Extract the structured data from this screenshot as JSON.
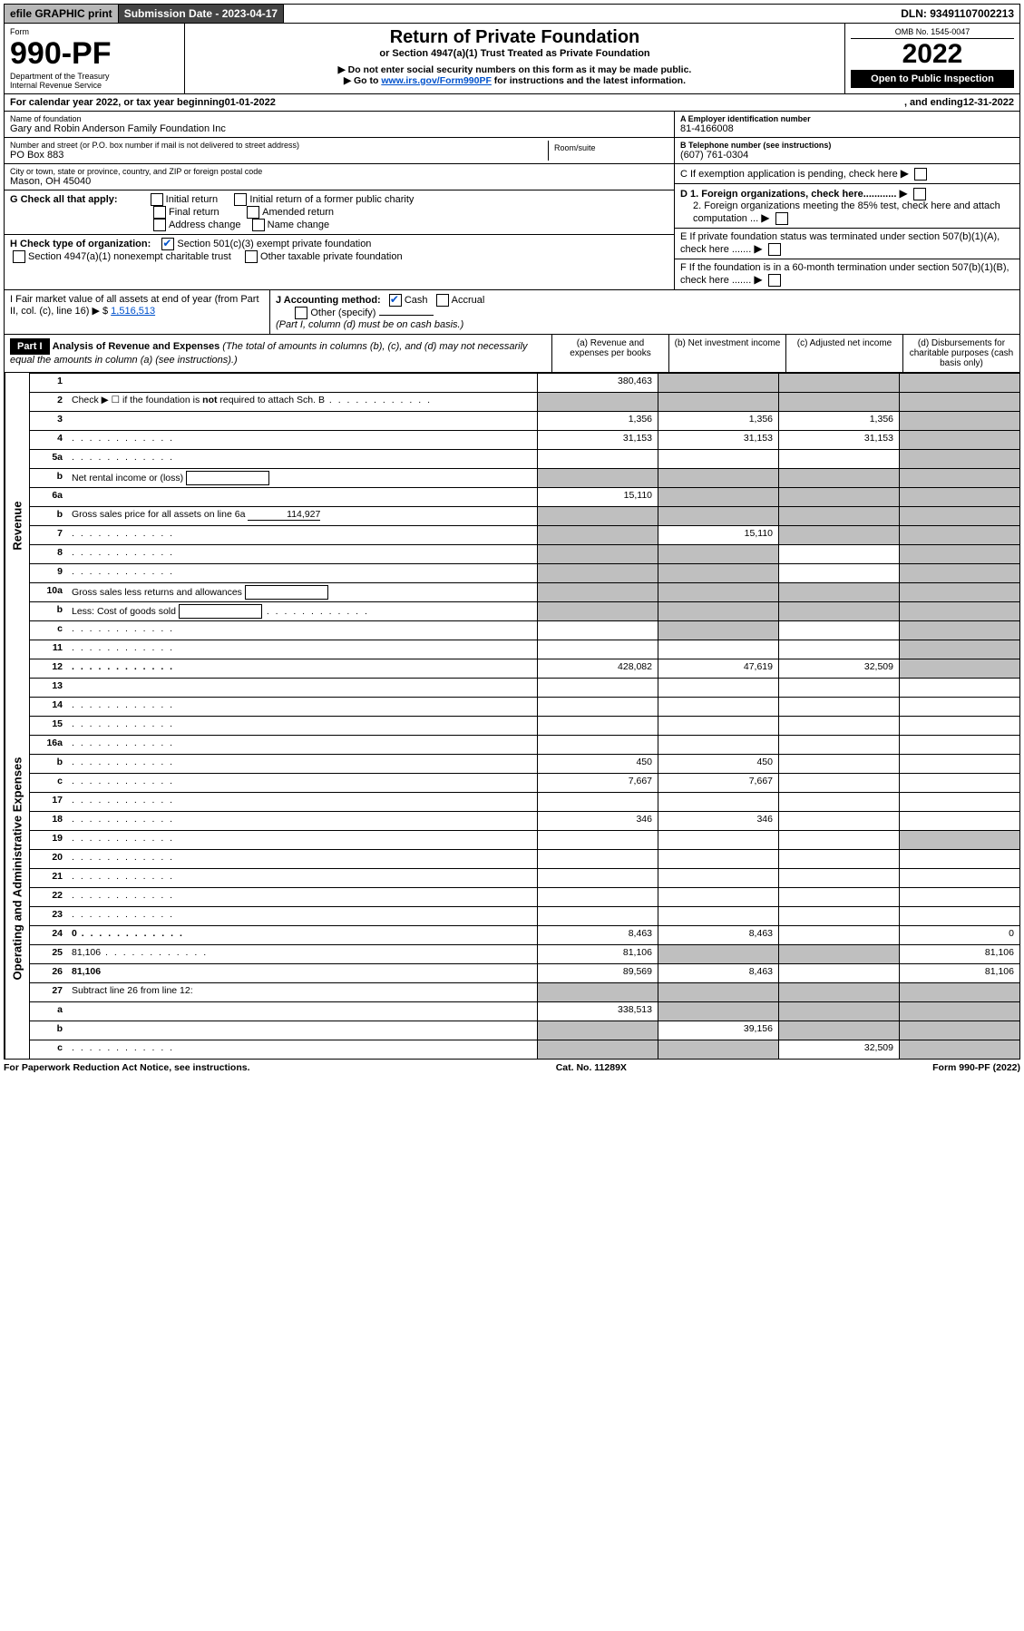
{
  "topbar": {
    "efile": "efile GRAPHIC print",
    "sub_label": "Submission Date - 2023-04-17",
    "dln": "DLN: 93491107002213"
  },
  "header": {
    "form_word": "Form",
    "form_no": "990-PF",
    "dept": "Department of the Treasury",
    "irs": "Internal Revenue Service",
    "title": "Return of Private Foundation",
    "subtitle": "or Section 4947(a)(1) Trust Treated as Private Foundation",
    "note1": "▶ Do not enter social security numbers on this form as it may be made public.",
    "note2_pre": "▶ Go to ",
    "note2_link": "www.irs.gov/Form990PF",
    "note2_post": " for instructions and the latest information.",
    "omb": "OMB No. 1545-0047",
    "year": "2022",
    "inspect": "Open to Public Inspection"
  },
  "calendar": {
    "text_pre": "For calendar year 2022, or tax year beginning ",
    "begin": "01-01-2022",
    "text_mid": ", and ending ",
    "end": "12-31-2022"
  },
  "entity": {
    "name_label": "Name of foundation",
    "name": "Gary and Robin Anderson Family Foundation Inc",
    "addr_label": "Number and street (or P.O. box number if mail is not delivered to street address)",
    "addr": "PO Box 883",
    "room_label": "Room/suite",
    "city_label": "City or town, state or province, country, and ZIP or foreign postal code",
    "city": "Mason, OH  45040",
    "a_label": "A Employer identification number",
    "ein": "81-4166008",
    "b_label": "B Telephone number (see instructions)",
    "phone": "(607) 761-0304",
    "c_label": "C If exemption application is pending, check here",
    "d1": "D 1. Foreign organizations, check here............",
    "d2": "2. Foreign organizations meeting the 85% test, check here and attach computation ...",
    "e": "E  If private foundation status was terminated under section 507(b)(1)(A), check here .......",
    "f": "F  If the foundation is in a 60-month termination under section 507(b)(1)(B), check here ......."
  },
  "g": {
    "label": "G Check all that apply:",
    "opts": [
      "Initial return",
      "Final return",
      "Address change",
      "Initial return of a former public charity",
      "Amended return",
      "Name change"
    ]
  },
  "h": {
    "label": "H Check type of organization:",
    "opt1": "Section 501(c)(3) exempt private foundation",
    "opt2": "Section 4947(a)(1) nonexempt charitable trust",
    "opt3": "Other taxable private foundation"
  },
  "i": {
    "label_pre": "I Fair market value of all assets at end of year (from Part II, col. (c), line 16) ▶ $",
    "value": "1,516,513"
  },
  "j": {
    "label": "J Accounting method:",
    "cash": "Cash",
    "accrual": "Accrual",
    "other": "Other (specify)",
    "note": "(Part I, column (d) must be on cash basis.)"
  },
  "part1": {
    "badge": "Part I",
    "title": "Analysis of Revenue and Expenses",
    "title_note": " (The total of amounts in columns (b), (c), and (d) may not necessarily equal the amounts in column (a) (see instructions).)",
    "col_a": "(a)  Revenue and expenses per books",
    "col_b": "(b)  Net investment income",
    "col_c": "(c)  Adjusted net income",
    "col_d": "(d)  Disbursements for charitable purposes (cash basis only)"
  },
  "side_labels": {
    "rev": "Revenue",
    "exp": "Operating and Administrative Expenses"
  },
  "rows": [
    {
      "n": "1",
      "d": "",
      "a": "380,463",
      "b": "",
      "c": "",
      "gb": true,
      "gc": true,
      "gd": true
    },
    {
      "n": "2",
      "d": "Check ▶ ☐ if the foundation is <b>not</b> required to attach Sch. B",
      "dots": true,
      "noval": true
    },
    {
      "n": "3",
      "d": "",
      "a": "1,356",
      "b": "1,356",
      "c": "1,356",
      "gd": true
    },
    {
      "n": "4",
      "d": "",
      "dots": true,
      "a": "31,153",
      "b": "31,153",
      "c": "31,153",
      "gd": true
    },
    {
      "n": "5a",
      "d": "",
      "dots": true,
      "a": "",
      "b": "",
      "c": "",
      "gd": true
    },
    {
      "n": "b",
      "d": "Net rental income or (loss)",
      "box": true,
      "noval": true
    },
    {
      "n": "6a",
      "d": "",
      "a": "15,110",
      "b": "",
      "c": "",
      "gb": true,
      "gc": true,
      "gd": true
    },
    {
      "n": "b",
      "d": "Gross sales price for all assets on line 6a",
      "inline_val": "114,927",
      "noval": true
    },
    {
      "n": "7",
      "d": "",
      "dots": true,
      "a": "",
      "b": "15,110",
      "c": "",
      "ga": true,
      "gc": true,
      "gd": true
    },
    {
      "n": "8",
      "d": "",
      "dots": true,
      "a": "",
      "b": "",
      "c": "",
      "ga": true,
      "gb": true,
      "gd": true
    },
    {
      "n": "9",
      "d": "",
      "dots": true,
      "a": "",
      "b": "",
      "c": "",
      "ga": true,
      "gb": true,
      "gd": true
    },
    {
      "n": "10a",
      "d": "Gross sales less returns and allowances",
      "box": true,
      "noval": true
    },
    {
      "n": "b",
      "d": "Less: Cost of goods sold",
      "dots": true,
      "box": true,
      "noval": true
    },
    {
      "n": "c",
      "d": "",
      "dots": true,
      "a": "",
      "b": "",
      "c": "",
      "gb": true,
      "gd": true
    },
    {
      "n": "11",
      "d": "",
      "dots": true,
      "a": "",
      "b": "",
      "c": "",
      "gd": true
    },
    {
      "n": "12",
      "d": "",
      "dots": true,
      "a": "428,082",
      "b": "47,619",
      "c": "32,509",
      "gd": true,
      "bold": true
    },
    {
      "n": "13",
      "d": "",
      "a": "",
      "b": "",
      "c": ""
    },
    {
      "n": "14",
      "d": "",
      "dots": true,
      "a": "",
      "b": "",
      "c": ""
    },
    {
      "n": "15",
      "d": "",
      "dots": true,
      "a": "",
      "b": "",
      "c": ""
    },
    {
      "n": "16a",
      "d": "",
      "dots": true,
      "a": "",
      "b": "",
      "c": ""
    },
    {
      "n": "b",
      "d": "",
      "dots": true,
      "a": "450",
      "b": "450",
      "c": ""
    },
    {
      "n": "c",
      "d": "",
      "dots": true,
      "a": "7,667",
      "b": "7,667",
      "c": ""
    },
    {
      "n": "17",
      "d": "",
      "dots": true,
      "a": "",
      "b": "",
      "c": ""
    },
    {
      "n": "18",
      "d": "",
      "dots": true,
      "a": "346",
      "b": "346",
      "c": ""
    },
    {
      "n": "19",
      "d": "",
      "dots": true,
      "a": "",
      "b": "",
      "c": "",
      "gd": true
    },
    {
      "n": "20",
      "d": "",
      "dots": true,
      "a": "",
      "b": "",
      "c": ""
    },
    {
      "n": "21",
      "d": "",
      "dots": true,
      "a": "",
      "b": "",
      "c": ""
    },
    {
      "n": "22",
      "d": "",
      "dots": true,
      "a": "",
      "b": "",
      "c": ""
    },
    {
      "n": "23",
      "d": "",
      "dots": true,
      "a": "",
      "b": "",
      "c": ""
    },
    {
      "n": "24",
      "d": "0",
      "dots": true,
      "a": "8,463",
      "b": "8,463",
      "c": "",
      "bold": true
    },
    {
      "n": "25",
      "d": "81,106",
      "dots": true,
      "a": "81,106",
      "b": "",
      "c": "",
      "gb": true,
      "gc": true
    },
    {
      "n": "26",
      "d": "81,106",
      "a": "89,569",
      "b": "8,463",
      "c": "",
      "bold": true
    },
    {
      "n": "27",
      "d": "Subtract line 26 from line 12:",
      "noval_grey": true
    },
    {
      "n": "a",
      "d": "",
      "a": "338,513",
      "b": "",
      "c": "",
      "gb": true,
      "gc": true,
      "gd": true
    },
    {
      "n": "b",
      "d": "",
      "a": "",
      "b": "39,156",
      "c": "",
      "ga": true,
      "gc": true,
      "gd": true
    },
    {
      "n": "c",
      "d": "",
      "dots": true,
      "a": "",
      "b": "",
      "c": "32,509",
      "ga": true,
      "gb": true,
      "gd": true
    }
  ],
  "footer": {
    "left": "For Paperwork Reduction Act Notice, see instructions.",
    "mid": "Cat. No. 11289X",
    "right": "Form 990-PF (2022)"
  }
}
